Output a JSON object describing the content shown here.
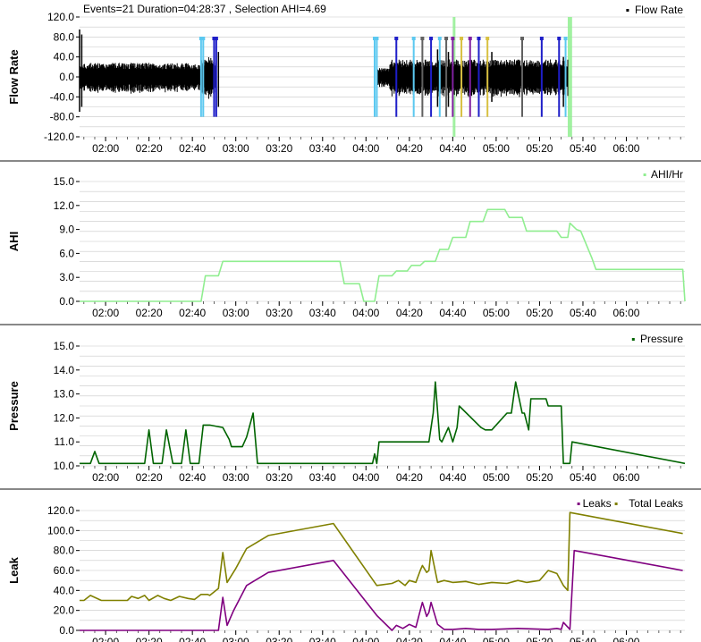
{
  "header": {
    "info": "Events=21 Duration=04:28:37 , Selection AHI=4.69"
  },
  "colors": {
    "background": "#ffffff",
    "grid": "#c8c8c8",
    "divider": "#888888",
    "flow": "#000000",
    "ahi": "#90ee90",
    "pressure": "#006400",
    "leaks": "#800080",
    "total_leaks": "#808000",
    "selection": "#90ee90",
    "event_cyan": "#5bc8f0",
    "event_blue": "#1e1ec8",
    "event_gray": "#606060",
    "event_purple": "#8020a0",
    "event_yellow": "#d8c040",
    "event_darkred": "#8b1a1a"
  },
  "x_ticks": [
    "02:00",
    "02:20",
    "02:40",
    "03:00",
    "03:20",
    "03:40",
    "04:00",
    "04:20",
    "04:40",
    "05:00",
    "05:20",
    "05:40",
    "06:00"
  ],
  "chart_data": [
    {
      "id": "flow",
      "type": "area",
      "ylabel": "Flow Rate",
      "ylim": [
        -120,
        120
      ],
      "yticks": [
        "120.0",
        "80.0",
        "40.0",
        "0.0",
        "-40.0",
        "-80.0",
        "-120.0"
      ],
      "xlim": [
        "01:48",
        "06:27"
      ],
      "legend": [
        {
          "name": "Flow Rate",
          "color": "#000000"
        }
      ],
      "segments": [
        {
          "start": "01:48",
          "end": "02:44",
          "amplitude": 28
        },
        {
          "start": "02:44",
          "end": "02:51",
          "amplitude": 40
        },
        {
          "start": "04:05",
          "end": "04:11",
          "amplitude": 18
        },
        {
          "start": "04:11",
          "end": "05:33",
          "amplitude": 35
        }
      ],
      "spikes": [
        {
          "x": "01:48",
          "min": -70,
          "max": 95
        },
        {
          "x": "01:49",
          "min": -60,
          "max": 85
        },
        {
          "x": "02:50",
          "min": -70,
          "max": 60
        },
        {
          "x": "02:52",
          "min": -60,
          "max": 50
        },
        {
          "x": "04:33",
          "min": -60,
          "max": 55
        },
        {
          "x": "04:38",
          "min": -60,
          "max": 50
        },
        {
          "x": "04:58",
          "min": -50,
          "max": 50
        },
        {
          "x": "05:31",
          "min": -60,
          "max": 40
        }
      ],
      "events": [
        {
          "x": "02:44",
          "color": "#5bc8f0"
        },
        {
          "x": "02:45",
          "color": "#5bc8f0"
        },
        {
          "x": "02:50",
          "color": "#1e1ec8"
        },
        {
          "x": "02:51",
          "color": "#1e1ec8"
        },
        {
          "x": "04:04",
          "color": "#5bc8f0"
        },
        {
          "x": "04:05",
          "color": "#5bc8f0"
        },
        {
          "x": "04:14",
          "color": "#1e1ec8"
        },
        {
          "x": "04:22",
          "color": "#5bc8f0"
        },
        {
          "x": "04:26",
          "color": "#606060"
        },
        {
          "x": "04:30",
          "color": "#1e1ec8"
        },
        {
          "x": "04:34",
          "color": "#5bc8f0"
        },
        {
          "x": "04:37",
          "color": "#606060"
        },
        {
          "x": "04:40",
          "color": "#8020a0"
        },
        {
          "x": "04:44",
          "color": "#d8c040"
        },
        {
          "x": "04:48",
          "color": "#8020a0"
        },
        {
          "x": "04:52",
          "color": "#1e1ec8"
        },
        {
          "x": "04:56",
          "color": "#d8c040"
        },
        {
          "x": "05:12",
          "color": "#606060"
        },
        {
          "x": "05:21",
          "color": "#1e1ec8"
        },
        {
          "x": "05:29",
          "color": "#1e1ec8"
        },
        {
          "x": "05:32",
          "color": "#5bc8f0"
        }
      ],
      "selections": [
        {
          "start": "04:40",
          "end": "04:41"
        },
        {
          "start": "05:33",
          "end": "05:35"
        }
      ]
    },
    {
      "id": "ahi",
      "type": "line",
      "ylabel": "AHI",
      "ylim": [
        0,
        15
      ],
      "yticks": [
        "15.0",
        "12.0",
        "9.0",
        "6.0",
        "3.0",
        "0.0"
      ],
      "xlim": [
        "01:48",
        "06:27"
      ],
      "legend": [
        {
          "name": "AHI/Hr",
          "color": "#90ee90"
        }
      ],
      "series": [
        {
          "name": "AHI/Hr",
          "color": "#90ee90",
          "x": [
            "01:48",
            "02:44",
            "02:46",
            "02:52",
            "02:54",
            "03:48",
            "03:50",
            "03:57",
            "03:59",
            "04:04",
            "04:06",
            "04:12",
            "04:14",
            "04:19",
            "04:21",
            "04:25",
            "04:27",
            "04:32",
            "04:34",
            "04:38",
            "04:40",
            "04:46",
            "04:48",
            "04:54",
            "04:56",
            "05:04",
            "05:06",
            "05:12",
            "05:14",
            "05:28",
            "05:30",
            "05:33",
            "05:34",
            "05:37",
            "05:39",
            "05:44",
            "05:46",
            "06:26",
            "06:27"
          ],
          "values": [
            0,
            0,
            3.2,
            3.2,
            5,
            5,
            2.2,
            2.2,
            0,
            0,
            3.2,
            3.2,
            3.8,
            3.8,
            4.5,
            4.5,
            5,
            5,
            6.5,
            6.5,
            8,
            8,
            10,
            10,
            11.5,
            11.5,
            10.5,
            10.5,
            8.8,
            8.8,
            8,
            8,
            9.8,
            9,
            8.8,
            5.5,
            4,
            4,
            0
          ]
        }
      ]
    },
    {
      "id": "pressure",
      "type": "line",
      "ylabel": "Pressure",
      "ylim": [
        10,
        15
      ],
      "yticks": [
        "15.0",
        "14.0",
        "13.0",
        "12.0",
        "11.0",
        "10.0"
      ],
      "xlim": [
        "01:48",
        "06:27"
      ],
      "legend": [
        {
          "name": "Pressure",
          "color": "#006400"
        }
      ],
      "series": [
        {
          "name": "Pressure",
          "color": "#006400",
          "x": [
            "01:48",
            "01:53",
            "01:55",
            "01:57",
            "02:18",
            "02:20",
            "02:22",
            "02:26",
            "02:28",
            "02:31",
            "02:35",
            "02:37",
            "02:39",
            "02:43",
            "02:45",
            "02:48",
            "02:54",
            "02:57",
            "02:58",
            "03:03",
            "03:05",
            "03:08",
            "03:10",
            "04:03",
            "04:04",
            "04:05",
            "04:06",
            "04:11",
            "04:18",
            "04:23",
            "04:29",
            "04:31",
            "04:32",
            "04:34",
            "04:35",
            "04:38",
            "04:40",
            "04:42",
            "04:43",
            "04:53",
            "04:55",
            "04:57",
            "04:58",
            "05:05",
            "05:07",
            "05:09",
            "05:12",
            "05:13",
            "05:15",
            "05:16",
            "05:23",
            "05:24",
            "05:30",
            "05:31",
            "05:34",
            "05:35",
            "06:27"
          ],
          "values": [
            10.1,
            10.1,
            10.6,
            10.1,
            10.1,
            11.5,
            10.1,
            10.1,
            11.5,
            10.1,
            10.1,
            11.5,
            10.1,
            10.1,
            11.7,
            11.7,
            11.6,
            11.1,
            10.8,
            10.8,
            11.2,
            12.2,
            10.1,
            10.1,
            10.5,
            10.1,
            11,
            11,
            11,
            11,
            11,
            12.2,
            13.5,
            11.1,
            11,
            11.6,
            11,
            11.6,
            12.5,
            11.6,
            11.5,
            11.5,
            11.5,
            12.2,
            12.2,
            13.5,
            12.2,
            12.2,
            11.5,
            12.8,
            12.8,
            12.5,
            12.5,
            10.1,
            10.1,
            11.0,
            10.1
          ]
        }
      ]
    },
    {
      "id": "leak",
      "type": "line",
      "ylabel": "Leak",
      "ylim": [
        0,
        120
      ],
      "yticks": [
        "120.0",
        "100.0",
        "80.0",
        "60.0",
        "40.0",
        "20.0",
        "0.0"
      ],
      "xlim": [
        "01:48",
        "06:27"
      ],
      "legend": [
        {
          "name": "Leaks",
          "color": "#800080"
        },
        {
          "name": "Total Leaks",
          "color": "#808000"
        }
      ],
      "series": [
        {
          "name": "Leaks",
          "color": "#800080",
          "x": [
            "01:48",
            "02:52",
            "02:54",
            "02:56",
            "02:59",
            "03:05",
            "03:15",
            "03:45",
            "04:05",
            "04:12",
            "04:14",
            "04:17",
            "04:20",
            "04:23",
            "04:25",
            "04:26",
            "04:28",
            "04:29",
            "04:30",
            "04:33",
            "04:36",
            "04:40",
            "04:46",
            "04:52",
            "04:58",
            "05:10",
            "05:24",
            "05:28",
            "05:30",
            "05:31",
            "05:34",
            "05:36",
            "06:26"
          ],
          "values": [
            0,
            0,
            33,
            5,
            20,
            45,
            58,
            70,
            15,
            0,
            5,
            2,
            6,
            3,
            20,
            28,
            14,
            18,
            28,
            6,
            1,
            1,
            2,
            1,
            1,
            2,
            1,
            2,
            1,
            8,
            1,
            80,
            60
          ]
        },
        {
          "name": "Total Leaks",
          "color": "#808000",
          "x": [
            "01:48",
            "01:50",
            "01:53",
            "01:55",
            "01:58",
            "02:10",
            "02:12",
            "02:15",
            "02:18",
            "02:20",
            "02:24",
            "02:27",
            "02:30",
            "02:34",
            "02:38",
            "02:41",
            "02:44",
            "02:47",
            "02:48",
            "02:52",
            "02:54",
            "02:56",
            "03:00",
            "03:05",
            "03:15",
            "03:45",
            "04:05",
            "04:12",
            "04:15",
            "04:18",
            "04:20",
            "04:23",
            "04:25",
            "04:26",
            "04:28",
            "04:29",
            "04:30",
            "04:33",
            "04:36",
            "04:40",
            "04:46",
            "04:52",
            "04:58",
            "05:05",
            "05:10",
            "05:14",
            "05:20",
            "05:24",
            "05:28",
            "05:31",
            "05:33",
            "05:34",
            "06:26"
          ],
          "values": [
            30,
            30,
            35,
            33,
            30,
            30,
            34,
            32,
            35,
            30,
            35,
            32,
            30,
            34,
            32,
            31,
            36,
            36,
            35,
            42,
            78,
            48,
            62,
            82,
            95,
            107,
            45,
            47,
            50,
            45,
            50,
            48,
            60,
            65,
            58,
            60,
            80,
            48,
            50,
            48,
            49,
            46,
            48,
            47,
            50,
            48,
            50,
            60,
            57,
            45,
            40,
            118,
            97
          ]
        }
      ]
    }
  ]
}
